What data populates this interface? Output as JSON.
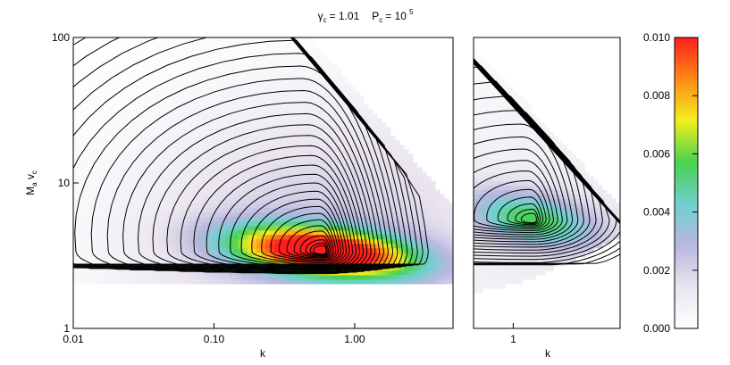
{
  "title": {
    "gamma_symbol": "γ",
    "gamma_sub": "c",
    "gamma_value": "= 1.01",
    "p_symbol": "P",
    "p_sub": "c",
    "p_value_base": "= 10",
    "p_value_exp": "5"
  },
  "chart_data": [
    {
      "type": "heatmap",
      "subplot": "left",
      "xlabel": "k",
      "ylabel": {
        "main": "M",
        "sub1": "a",
        "mid": " v",
        "sub2": "c"
      },
      "x_scale": "log",
      "y_scale": "log",
      "xlim": [
        0.01,
        5.0
      ],
      "ylim": [
        1,
        100
      ],
      "x_ticks": [
        {
          "value": 0.01,
          "label": "0.01"
        },
        {
          "value": 0.1,
          "label": "0.10"
        },
        {
          "value": 1.0,
          "label": "1.00"
        }
      ],
      "y_ticks": [
        {
          "value": 1,
          "label": "1"
        },
        {
          "value": 10,
          "label": "10"
        },
        {
          "value": 100,
          "label": "100"
        }
      ],
      "peak": {
        "k": 0.6,
        "M_a_v_c": 3.4,
        "value": 0.0102
      },
      "contour_levels": 30
    },
    {
      "type": "heatmap",
      "subplot": "right",
      "xlabel": "k",
      "x_scale": "log",
      "y_scale": "log",
      "xlim": [
        0.55,
        5.0
      ],
      "ylim": [
        1,
        100
      ],
      "x_ticks": [
        {
          "value": 1,
          "label": "1"
        }
      ],
      "peak": {
        "k": 1.35,
        "M_a_v_c": 5.6,
        "value": 0.0045
      },
      "contour_levels": 22
    }
  ],
  "colorbar": {
    "min": 0.0,
    "max": 0.01,
    "ticks": [
      {
        "value": 0.0,
        "label": "0.000"
      },
      {
        "value": 0.002,
        "label": "0.002"
      },
      {
        "value": 0.004,
        "label": "0.004"
      },
      {
        "value": 0.006,
        "label": "0.006"
      },
      {
        "value": 0.008,
        "label": "0.008"
      },
      {
        "value": 0.01,
        "label": "0.010"
      }
    ],
    "colors": [
      "#ffffff",
      "#e9e4ee",
      "#b9b7df",
      "#6fd0cf",
      "#48d24f",
      "#f4ef1d",
      "#ff8a16",
      "#ff1d1d"
    ]
  }
}
